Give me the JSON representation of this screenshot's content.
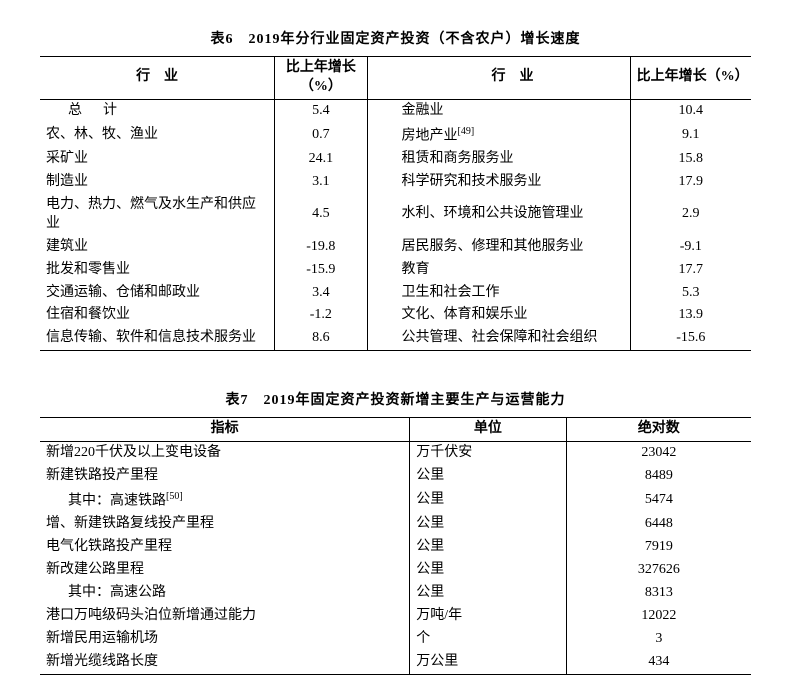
{
  "table6": {
    "title": "表6　2019年分行业固定资产投资（不含农户）增长速度",
    "header_industry": "行　业",
    "header_growth": "比上年增长（%）",
    "left": [
      {
        "name": "总计",
        "val": "5.4",
        "indent": 2
      },
      {
        "name": "农、林、牧、渔业",
        "val": "0.7",
        "indent": 1
      },
      {
        "name": "采矿业",
        "val": "24.1",
        "indent": 1
      },
      {
        "name": "制造业",
        "val": "3.1",
        "indent": 1
      },
      {
        "name": "电力、热力、燃气及水生产和供应业",
        "val": "4.5",
        "indent": 1
      },
      {
        "name": "建筑业",
        "val": "-19.8",
        "indent": 1
      },
      {
        "name": "批发和零售业",
        "val": "-15.9",
        "indent": 1
      },
      {
        "name": "交通运输、仓储和邮政业",
        "val": "3.4",
        "indent": 1
      },
      {
        "name": "住宿和餐饮业",
        "val": "-1.2",
        "indent": 1
      },
      {
        "name": "信息传输、软件和信息技术服务业",
        "val": "8.6",
        "indent": 1
      }
    ],
    "right": [
      {
        "name": "金融业",
        "val": "10.4"
      },
      {
        "name": "房地产业",
        "sup": "[49]",
        "val": "9.1"
      },
      {
        "name": "租赁和商务服务业",
        "val": "15.8"
      },
      {
        "name": "科学研究和技术服务业",
        "val": "17.9"
      },
      {
        "name": "水利、环境和公共设施管理业",
        "val": "2.9"
      },
      {
        "name": "居民服务、修理和其他服务业",
        "val": "-9.1"
      },
      {
        "name": "教育",
        "val": "17.7"
      },
      {
        "name": "卫生和社会工作",
        "val": "5.3"
      },
      {
        "name": "文化、体育和娱乐业",
        "val": "13.9"
      },
      {
        "name": "公共管理、社会保障和社会组织",
        "val": "-15.6"
      }
    ]
  },
  "table7": {
    "title": "表7　2019年固定资产投资新增主要生产与运营能力",
    "header_indicator": "指标",
    "header_unit": "单位",
    "header_abs": "绝对数",
    "rows": [
      {
        "name": "新增220千伏及以上变电设备",
        "unit": "万千伏安",
        "val": "23042",
        "indent": 1
      },
      {
        "name": "新建铁路投产里程",
        "unit": "公里",
        "val": "8489",
        "indent": 1
      },
      {
        "name": "其中：高速铁路",
        "sup": "[50]",
        "unit": "公里",
        "val": "5474",
        "indent": 2
      },
      {
        "name": "增、新建铁路复线投产里程",
        "unit": "公里",
        "val": "6448",
        "indent": 1
      },
      {
        "name": "电气化铁路投产里程",
        "unit": "公里",
        "val": "7919",
        "indent": 1
      },
      {
        "name": "新改建公路里程",
        "unit": "公里",
        "val": "327626",
        "indent": 1
      },
      {
        "name": "其中：高速公路",
        "unit": "公里",
        "val": "8313",
        "indent": 2
      },
      {
        "name": "港口万吨级码头泊位新增通过能力",
        "unit": "万吨/年",
        "val": "12022",
        "indent": 1
      },
      {
        "name": "新增民用运输机场",
        "unit": "个",
        "val": "3",
        "indent": 1
      },
      {
        "name": "新增光缆线路长度",
        "unit": "万公里",
        "val": "434",
        "indent": 1
      }
    ]
  }
}
